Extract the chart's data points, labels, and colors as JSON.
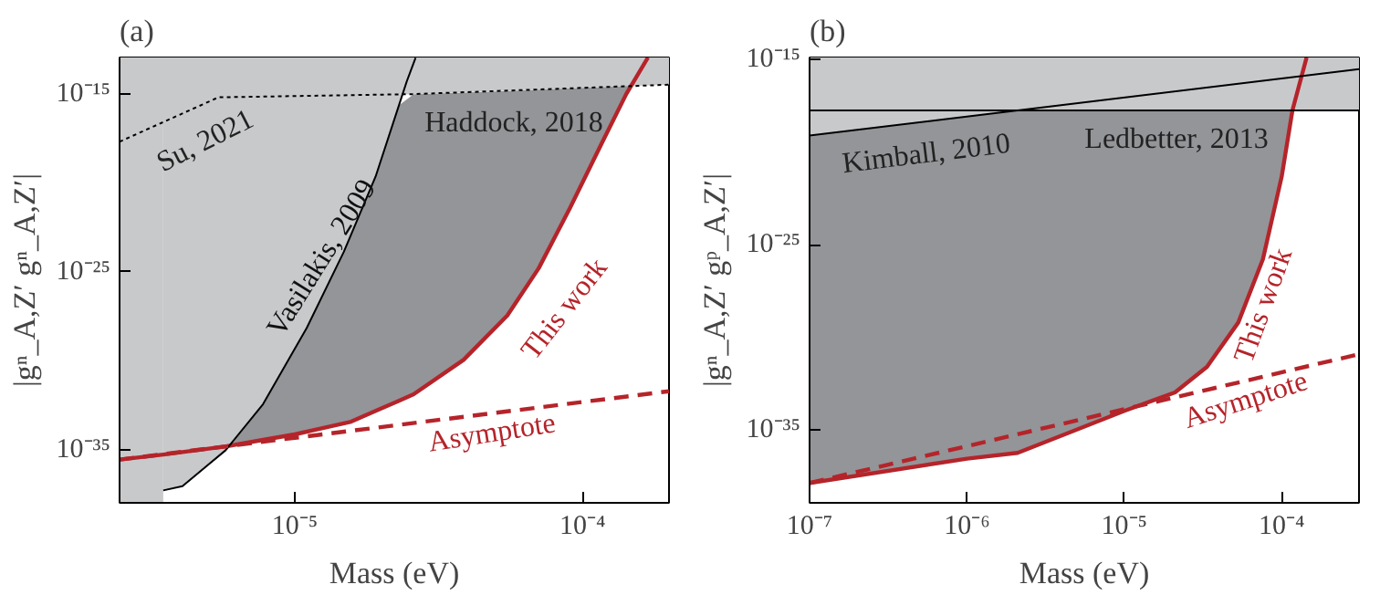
{
  "chart_data": [
    {
      "type": "line",
      "title": "(a)",
      "xlabel": "Mass (eV)",
      "ylabel": "|gⁿ_A,Z′ gⁿ_A,Z′|",
      "log": "xy",
      "xlim": [
        2.46e-06,
        0.0002
      ],
      "ylim": [
        1e-38,
        1.15e-13
      ],
      "xticks": [
        {
          "value": 1e-05,
          "label": "10⁻⁵"
        },
        {
          "value": 0.0001,
          "label": "10⁻⁴"
        }
      ],
      "yticks": [
        {
          "value": 1e-35,
          "label": "10⁻³⁵"
        },
        {
          "value": 1e-25,
          "label": "10⁻²⁵"
        },
        {
          "value": 1e-15,
          "label": "10⁻¹⁵"
        }
      ],
      "series": [
        {
          "color": "#b5242a",
          "line_style": "solid",
          "x": [
            2.46e-06,
            3.49e-06,
            5.77e-06,
            7.76e-06,
            1e-05,
            1.25e-05,
            1.57e-05,
            1.91e-05,
            2.3e-05,
            2.59e-05,
            3.86e-05,
            5.48e-05,
            7.05e-05,
            9.05e-05,
            0.000116,
            0.000142,
            0.000169
          ],
          "values": [
            2.7e-36,
            5.2e-36,
            1.5e-35,
            3.5e-35,
            7.1e-35,
            1.6e-34,
            3.7e-34,
            1.5e-33,
            5.5e-33,
            1.3e-32,
            1.1e-30,
            3.5e-28,
            1.6e-25,
            3.9e-22,
            1.4e-18,
            1e-15,
            1.15e-13
          ],
          "lower": [
            2.7e-36,
            5.2e-36,
            1.5e-35,
            3.5e-35,
            7.1e-35,
            1.6e-34,
            3.7e-34,
            1.5e-33,
            5.5e-33,
            1.3e-32,
            1.1e-30,
            3.5e-28,
            1.6e-25,
            3.9e-22,
            1.4e-18,
            1e-15,
            1.15e-13
          ],
          "upper": [
            2.7e-36,
            5.2e-36,
            1.5e-35,
            3.6e-33,
            4e-30,
            4.4e-27,
            1.3e-23,
            2.3e-20,
            2.3e-16,
            1e-15,
            1.2e-15,
            1.5e-15,
            1.8e-15,
            2.1e-15,
            2.5e-15,
            2.9e-15,
            1.15e-13
          ]
        },
        {
          "color": "#000000",
          "line_style": "solid",
          "x": [
            3.49e-06,
            4.07e-06,
            5.75e-06,
            7.76e-06,
            1.1e-05,
            1.48e-05,
            1.91e-05,
            2.45e-05,
            2.63e-05
          ],
          "values": [
            5e-38,
            8.7e-38,
            9.1e-36,
            3.6e-33,
            6.8e-29,
            1.3e-24,
            2.3e-20,
            5.1e-15,
            1.1e-13
          ],
          "lower": [
            5e-38,
            8.7e-38,
            9.1e-36,
            3.6e-33,
            6.8e-29,
            1.3e-24,
            2.3e-20,
            5.1e-15,
            1.1e-13
          ],
          "upper": [
            1.15e-13,
            1.15e-13,
            1.15e-13,
            1.15e-13,
            1.15e-13,
            1.15e-13,
            1.15e-13,
            1.15e-13,
            1.15e-13
          ]
        },
        {
          "color": "#000000",
          "line_style": "dotted",
          "x": [
            2.46e-06,
            5.43e-06,
            2.59e-05,
            0.0002
          ],
          "values": [
            2.1e-18,
            6.6e-16,
            1e-15,
            3.4e-15
          ],
          "lower": [
            2.1e-18,
            6.6e-16,
            1e-15,
            3.4e-15
          ],
          "upper": [
            1.15e-13,
            1.15e-13,
            1.15e-13,
            1.15e-13
          ]
        },
        {
          "color": "#b5242a",
          "line_style": "dashed",
          "x": [
            2.46e-06,
            0.0002
          ],
          "values": [
            2.7e-36,
            1.9e-32
          ]
        }
      ],
      "bands": [
        {
          "axis": "x",
          "from": 2.46e-06,
          "to": 3.49e-06,
          "color": "#c8c9cb"
        }
      ],
      "annotations": [
        "Su, 2021",
        "Haddock, 2018",
        "Vasilakis, 2009",
        "This work",
        "Asymptote"
      ]
    },
    {
      "type": "line",
      "title": "(b)",
      "xlabel": "Mass (eV)",
      "ylabel": "|gⁿ_A,Z′ gᵖ_A,Z′|",
      "log": "xy",
      "xlim": [
        1e-07,
        0.00031
      ],
      "ylim": [
        1.2e-39,
        1.3e-15
      ],
      "xticks": [
        {
          "value": 1e-07,
          "label": "10⁻⁷"
        },
        {
          "value": 1e-06,
          "label": "10⁻⁶"
        },
        {
          "value": 1e-05,
          "label": "10⁻⁵"
        },
        {
          "value": 0.0001,
          "label": "10⁻⁴"
        }
      ],
      "yticks": [
        {
          "value": 1e-35,
          "label": "10⁻³⁵"
        },
        {
          "value": 1e-25,
          "label": "10⁻²⁵"
        },
        {
          "value": 1e-15,
          "label": "10⁻¹⁵"
        }
      ],
      "series": [
        {
          "color": "#b5242a",
          "line_style": "solid",
          "x": [
            1e-07,
            1e-06,
            2.1e-06,
            1e-05,
            2.1e-05,
            3.35e-05,
            5.3e-05,
            7.6e-05,
            0.0001,
            0.000117,
            0.000144
          ],
          "values": [
            1.4e-38,
            2.9e-37,
            6e-37,
            1.1e-34,
            1.1e-33,
            2.6e-32,
            6.5e-30,
            1.7e-26,
            4.8e-22,
            1.8e-18,
            1.3e-15
          ],
          "lower": [
            1.4e-38,
            2.9e-37,
            6e-37,
            1.1e-34,
            1.1e-33,
            2.6e-32,
            6.5e-30,
            1.7e-26,
            4.8e-22,
            1.8e-18,
            1.3e-15
          ],
          "upper": [
            7.9e-20,
            8.5e-19,
            1.8e-18,
            1.8e-18,
            1.8e-18,
            1.8e-18,
            1.8e-18,
            1.8e-18,
            1.8e-18,
            1.8e-18,
            1.3e-15
          ]
        },
        {
          "color": "#000000",
          "line_style": "solid",
          "x": [
            1e-07,
            2.1e-06,
            0.00031
          ],
          "values": [
            7.9e-20,
            1.8e-18,
            3.1e-16
          ],
          "lower": [
            7.9e-20,
            1.8e-18,
            3.1e-16
          ],
          "upper": [
            1.8e-18,
            1.8e-18,
            3.1e-16
          ]
        },
        {
          "color": "#000000",
          "line_style": "solid",
          "x": [
            1e-07,
            0.00031
          ],
          "values": [
            1.8e-18,
            1.8e-18
          ],
          "lower": [
            1.8e-18,
            1.8e-18
          ],
          "upper": [
            1.3e-15,
            1.3e-15
          ]
        },
        {
          "color": "#b5242a",
          "line_style": "dashed",
          "x": [
            1e-07,
            0.00031
          ],
          "values": [
            1.4e-38,
            1.26e-31
          ]
        }
      ],
      "annotations": [
        "Kimball, 2010",
        "Ledbetter, 2013",
        "This work",
        "Asymptote"
      ]
    }
  ]
}
